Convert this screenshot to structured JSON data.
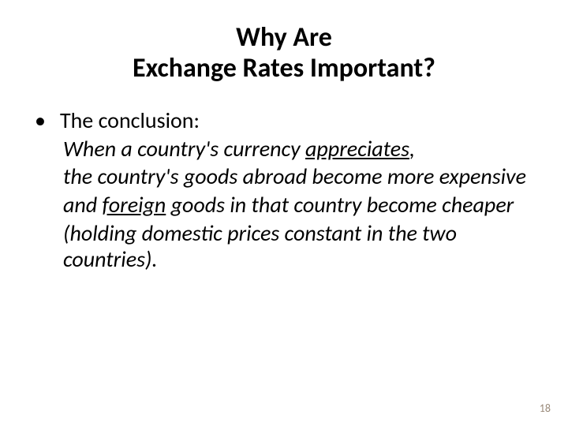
{
  "slide": {
    "title_line1": "Why Are",
    "title_line2": "Exchange Rates Important?",
    "bullet_label": "The conclusion:",
    "line1_pre": "When a country's currency ",
    "line1_u": "appreciates",
    "line1_post": ",",
    "line2": "the country's goods abroad become more expensive",
    "line3_pre": "and ",
    "line3_u": "foreign",
    "line3_post": " goods in that country become cheaper",
    "line4": "(holding domestic prices constant in the two countries).",
    "page_number": "18",
    "colors": {
      "background": "#ffffff",
      "text": "#000000",
      "page_number": "#9a8a7a"
    },
    "fonts": {
      "title_size": 34,
      "body_size": 28,
      "pagenum_size": 14
    }
  }
}
